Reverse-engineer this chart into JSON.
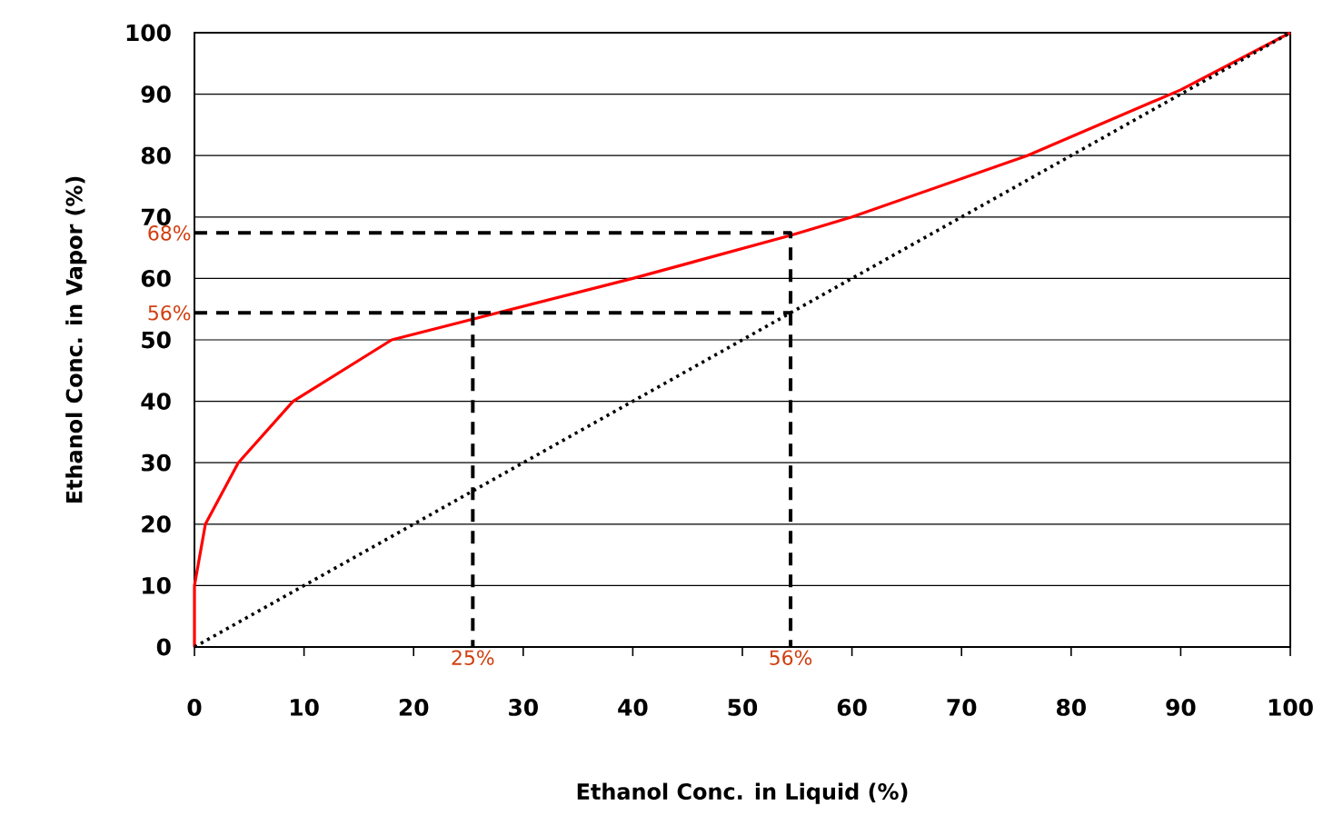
{
  "chart_data": {
    "type": "line",
    "xlabel": "Ethanol Conc. in Liquid (%)",
    "ylabel": "Ethanol Conc. in Vapor (%)",
    "xlim": [
      0,
      100
    ],
    "ylim": [
      0,
      100
    ],
    "xticks": [
      0,
      10,
      20,
      30,
      40,
      50,
      60,
      70,
      80,
      90,
      100
    ],
    "yticks": [
      0,
      10,
      20,
      30,
      40,
      50,
      60,
      70,
      80,
      90,
      100
    ],
    "grid": "y",
    "marker": "none",
    "series": [
      {
        "color": "#ff0000",
        "line_style": "solid",
        "x": [
          0,
          0,
          1,
          4,
          9,
          18,
          40,
          54.4,
          60,
          76,
          90,
          100
        ],
        "values": [
          0,
          10,
          20,
          30,
          40,
          50,
          60,
          67,
          70,
          80,
          90.7,
          100
        ]
      },
      {
        "color": "#000000",
        "line_style": "dotted",
        "x": [
          0,
          100
        ],
        "values": [
          0,
          100
        ]
      },
      {
        "color": "#000000",
        "line_style": "dashed",
        "x": [
          0,
          54.4,
          54.4
        ],
        "values": [
          67.4,
          67.4,
          0
        ]
      },
      {
        "color": "#000000",
        "line_style": "dashed",
        "x": [
          0,
          54.4
        ],
        "values": [
          54.4,
          54.4
        ]
      },
      {
        "color": "#000000",
        "line_style": "dashed",
        "x": [
          25.4,
          25.4
        ],
        "values": [
          54.4,
          0
        ]
      }
    ],
    "annotations": [
      {
        "text": "68%",
        "x": 0,
        "y": 67.4
      },
      {
        "text": "56%",
        "x": 0,
        "y": 54.4
      },
      {
        "text": "25%",
        "x": 25.4,
        "y": 0
      },
      {
        "text": "56%",
        "x": 54.4,
        "y": 0
      }
    ]
  }
}
